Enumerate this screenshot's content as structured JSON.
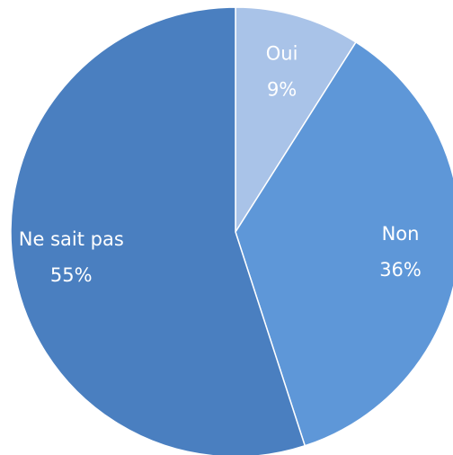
{
  "chart_data": {
    "type": "pie",
    "categories": [
      "Oui",
      "Non",
      "Ne sait pas"
    ],
    "values": [
      9,
      36,
      55
    ],
    "value_labels": [
      "9%",
      "36%",
      "55%"
    ],
    "colors": [
      "#a9c3e8",
      "#5e97d8",
      "#4a7fc0"
    ]
  }
}
